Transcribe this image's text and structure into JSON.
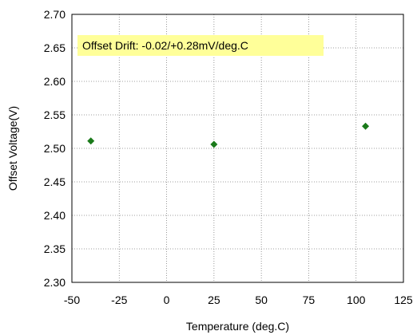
{
  "chart_data": {
    "type": "scatter",
    "annotation": "Offset Drift: -0.02/+0.28mV/deg.C",
    "xlabel": "Temperature (deg.C)",
    "ylabel": "Offset Voltage(V)",
    "xlim": [
      -50,
      125
    ],
    "ylim": [
      2.3,
      2.7
    ],
    "x_ticks": [
      -50,
      -25,
      0,
      25,
      50,
      75,
      100,
      125
    ],
    "y_ticks": [
      2.3,
      2.35,
      2.4,
      2.45,
      2.5,
      2.55,
      2.6,
      2.65,
      2.7
    ],
    "y_tick_decimals": 2,
    "grid": true,
    "legend": "none",
    "marker": "diamond",
    "series": [
      {
        "points": [
          {
            "x": -40,
            "y": 2.511
          },
          {
            "x": 25,
            "y": 2.506
          },
          {
            "x": 105,
            "y": 2.533
          }
        ]
      }
    ]
  },
  "colors": {
    "marker": "#1a7a1a",
    "annotation_background": "#ffff99",
    "grid": "#808080",
    "frame": "#000000"
  }
}
